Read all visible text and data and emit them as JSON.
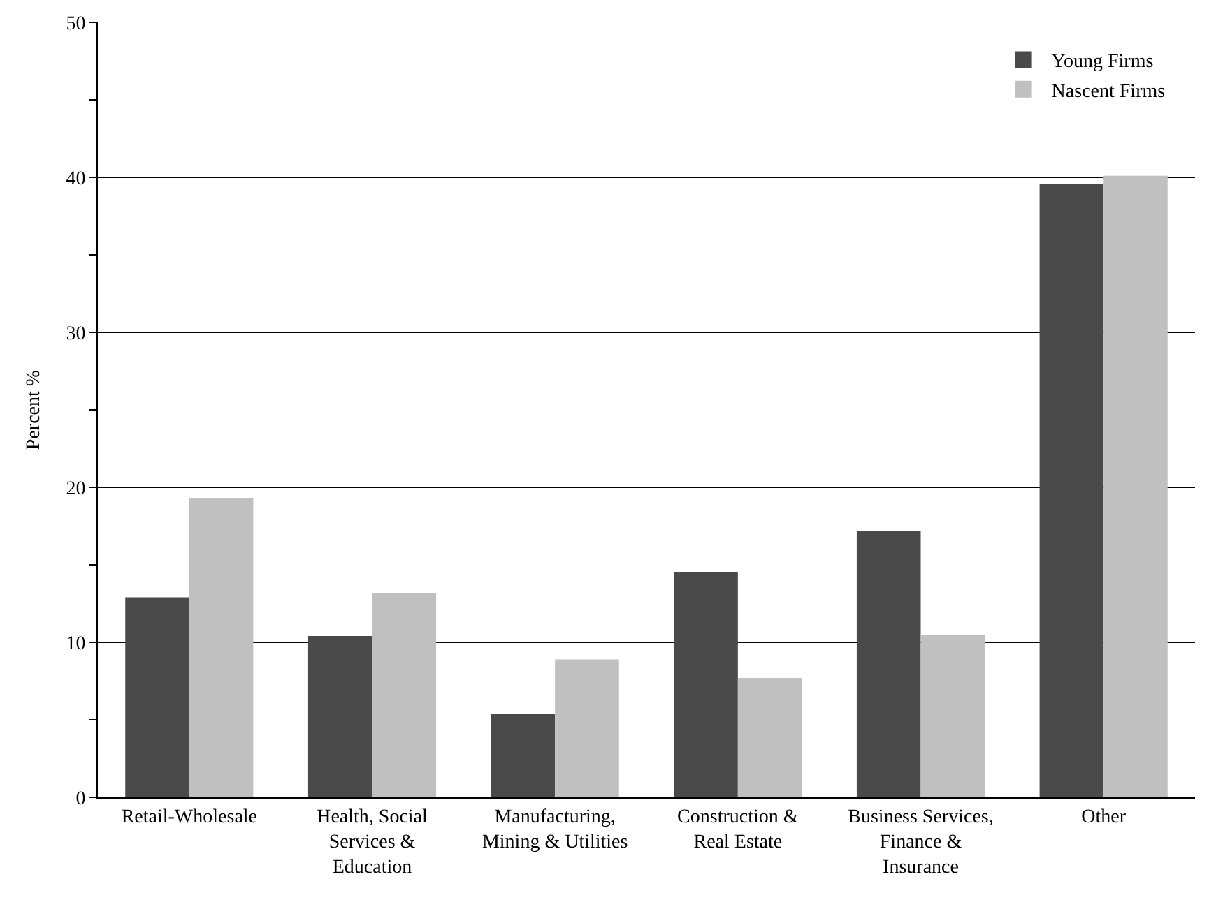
{
  "chart_data": {
    "type": "bar",
    "ylabel": "Percent %",
    "categories": [
      "Retail-Wholesale",
      "Health, Social Services & Education",
      "Manufacturing, Mining & Utilities",
      "Construction & Real Estate",
      "Business Services, Finance & Insurance",
      "Other"
    ],
    "series": [
      {
        "name": "Young Firms",
        "color": "#4a4a4a",
        "values": [
          12.9,
          10.4,
          5.4,
          14.5,
          17.2,
          39.6
        ]
      },
      {
        "name": "Nascent Firms",
        "color": "#c0c0c0",
        "values": [
          19.3,
          13.2,
          8.9,
          7.7,
          10.5,
          40.1
        ]
      }
    ],
    "ylim": [
      0,
      50
    ],
    "yticks": [
      0,
      {
        "value": 5,
        "label": null
      },
      10,
      {
        "value": 15,
        "label": null
      },
      20,
      {
        "value": 25,
        "label": null
      },
      30,
      {
        "value": 35,
        "label": null
      },
      40,
      {
        "value": 45,
        "label": null
      },
      50
    ],
    "grid": "y",
    "legend": "top right"
  }
}
